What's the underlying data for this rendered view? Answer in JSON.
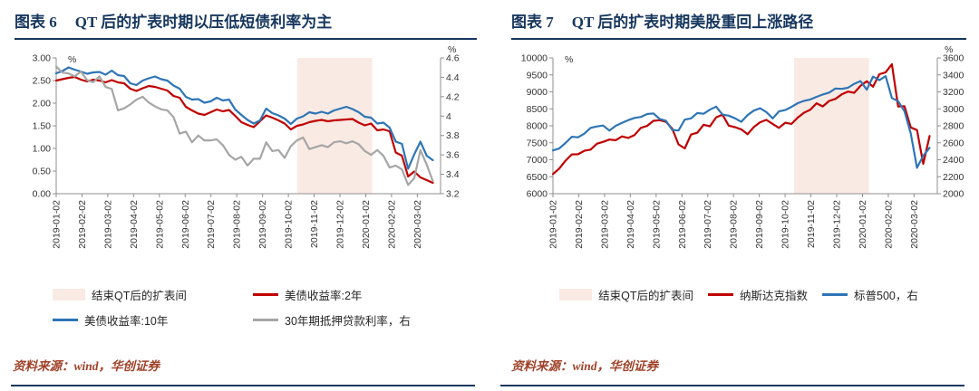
{
  "theme": {
    "navy": "#17375e",
    "red": "#c00000",
    "blue": "#2e75b6",
    "gray": "#a6a6a6",
    "shade_pink": "#f9eae4",
    "source_text": "#a0422a"
  },
  "panels": [
    {
      "figure_label": "图表 6",
      "title": "QT 后的扩表时期以压低短债利率为主",
      "source": "资料来源：wind，华创证券",
      "legend_rows": [
        [
          {
            "type": "area",
            "color": "#f9eae4",
            "label": "结束QT后的扩表间"
          },
          {
            "type": "line",
            "color": "#c00000",
            "label": "美债收益率:2年"
          }
        ],
        [
          {
            "type": "line",
            "color": "#2e75b6",
            "label": "美债收益率:10年"
          },
          {
            "type": "line",
            "color": "#a6a6a6",
            "label": "30年期抵押贷款利率，右"
          }
        ]
      ]
    },
    {
      "figure_label": "图表 7",
      "title": "QT 后的扩表时期美股重回上涨路径",
      "source": "资料来源：wind，华创证券",
      "legend_rows": [
        [
          {
            "type": "area",
            "color": "#f9eae4",
            "label": "结束QT后的扩表间"
          },
          {
            "type": "line",
            "color": "#c00000",
            "label": "纳斯达克指数"
          },
          {
            "type": "line",
            "color": "#2e75b6",
            "label": "标普500，右"
          }
        ]
      ]
    }
  ],
  "chart_data": [
    {
      "type": "line",
      "title": "QT 后的扩表时期以压低短债利率为主",
      "categories": [
        "2019-01-02",
        "2019-02-02",
        "2019-03-02",
        "2019-04-02",
        "2019-05-02",
        "2019-06-02",
        "2019-07-02",
        "2019-08-02",
        "2019-09-02",
        "2019-10-02",
        "2019-11-02",
        "2019-12-02",
        "2020-01-02",
        "2020-02-02",
        "2020-03-02"
      ],
      "x_range": [
        0,
        14.9
      ],
      "x_end": 14.6,
      "left_axis": {
        "min": 0,
        "max": 3,
        "step": 0.5,
        "decimals": 2,
        "unit": "%"
      },
      "right_axis": {
        "min": 3.2,
        "max": 4.6,
        "step": 0.2,
        "decimals": 1,
        "trim": true,
        "unit": "%"
      },
      "shade": {
        "label": "结束QT后的扩表间",
        "from": 9.35,
        "to": 12.25,
        "color": "#f9eae4"
      },
      "series": [
        {
          "name": "美债收益率:2年",
          "axis": "left",
          "color": "#c00000",
          "width": 2.2,
          "values": [
            2.5,
            2.53,
            2.56,
            2.58,
            2.52,
            2.48,
            2.52,
            2.5,
            2.46,
            2.51,
            2.46,
            2.44,
            2.32,
            2.27,
            2.33,
            2.38,
            2.36,
            2.32,
            2.28,
            2.16,
            2.12,
            1.92,
            1.84,
            1.77,
            1.74,
            1.8,
            1.86,
            1.82,
            1.85,
            1.72,
            1.58,
            1.52,
            1.47,
            1.6,
            1.73,
            1.68,
            1.62,
            1.55,
            1.42,
            1.5,
            1.53,
            1.58,
            1.61,
            1.63,
            1.6,
            1.62,
            1.63,
            1.64,
            1.65,
            1.57,
            1.51,
            1.55,
            1.4,
            1.42,
            1.38,
            0.91,
            0.84,
            0.38,
            0.49,
            0.36,
            0.3,
            0.24
          ]
        },
        {
          "name": "美债收益率:10年",
          "axis": "left",
          "color": "#2e75b6",
          "width": 2.2,
          "values": [
            2.66,
            2.71,
            2.79,
            2.74,
            2.7,
            2.65,
            2.68,
            2.69,
            2.63,
            2.72,
            2.62,
            2.6,
            2.44,
            2.4,
            2.5,
            2.55,
            2.59,
            2.53,
            2.5,
            2.39,
            2.32,
            2.14,
            2.08,
            2.09,
            2.01,
            2.04,
            2.12,
            2.06,
            2.08,
            1.86,
            1.74,
            1.63,
            1.55,
            1.62,
            1.88,
            1.78,
            1.73,
            1.66,
            1.54,
            1.66,
            1.71,
            1.8,
            1.77,
            1.81,
            1.77,
            1.84,
            1.88,
            1.92,
            1.87,
            1.8,
            1.7,
            1.68,
            1.55,
            1.57,
            1.46,
            1.15,
            1.1,
            0.55,
            0.87,
            1.15,
            0.84,
            0.74
          ]
        },
        {
          "name": "30年期抵押贷款利率，右",
          "axis": "right",
          "color": "#a6a6a6",
          "width": 2.2,
          "values": [
            4.51,
            4.45,
            4.44,
            4.41,
            4.46,
            4.37,
            4.35,
            4.41,
            4.3,
            4.28,
            4.06,
            4.08,
            4.12,
            4.17,
            4.2,
            4.14,
            4.1,
            4.07,
            4.06,
            3.99,
            3.82,
            3.84,
            3.73,
            3.8,
            3.75,
            3.75,
            3.76,
            3.7,
            3.6,
            3.55,
            3.58,
            3.49,
            3.56,
            3.56,
            3.73,
            3.64,
            3.65,
            3.57,
            3.69,
            3.75,
            3.78,
            3.66,
            3.68,
            3.7,
            3.68,
            3.73,
            3.74,
            3.72,
            3.74,
            3.71,
            3.64,
            3.6,
            3.65,
            3.59,
            3.47,
            3.49,
            3.45,
            3.29,
            3.36,
            3.65,
            3.5,
            3.33
          ]
        }
      ]
    },
    {
      "type": "line",
      "title": "QT 后的扩表时期美股重回上涨路径",
      "categories": [
        "2019-01-02",
        "2019-02-02",
        "2019-03-02",
        "2019-04-02",
        "2019-05-02",
        "2019-06-02",
        "2019-07-02",
        "2019-08-02",
        "2019-09-02",
        "2019-10-02",
        "2019-11-02",
        "2019-12-02",
        "2020-01-02",
        "2020-02-02",
        "2020-03-02"
      ],
      "x_range": [
        0,
        14.9
      ],
      "x_end": 14.6,
      "left_axis": {
        "min": 6000,
        "max": 10000,
        "step": 500,
        "decimals": 0,
        "unit": "%"
      },
      "right_axis": {
        "min": 2000,
        "max": 3600,
        "step": 200,
        "decimals": 0,
        "unit": "%"
      },
      "shade": {
        "label": "结束QT后的扩表间",
        "from": 9.35,
        "to": 12.25,
        "color": "#f9eae4"
      },
      "series": [
        {
          "name": "纳斯达克指数",
          "axis": "left",
          "color": "#c00000",
          "width": 2.2,
          "values": [
            6580,
            6740,
            6971,
            7157,
            7164,
            7264,
            7298,
            7472,
            7527,
            7595,
            7577,
            7689,
            7643,
            7729,
            7939,
            7998,
            8146,
            8164,
            8120,
            7917,
            7453,
            7333,
            7742,
            7797,
            8032,
            7984,
            8244,
            8330,
            8004,
            7959,
            7896,
            7751,
            7963,
            8103,
            8177,
            8057,
            7939,
            8090,
            8057,
            8243,
            8386,
            8475,
            8665,
            8570,
            8733,
            8792,
            8925,
            9007,
            8973,
            9179,
            9315,
            9151,
            9521,
            9577,
            9817,
            8567,
            8576,
            7951,
            7875,
            6880,
            7700
          ]
        },
        {
          "name": "标普500，右",
          "axis": "right",
          "color": "#2e75b6",
          "width": 2.2,
          "values": [
            2510,
            2532,
            2597,
            2671,
            2665,
            2707,
            2776,
            2793,
            2803,
            2743,
            2800,
            2834,
            2867,
            2893,
            2905,
            2939,
            2946,
            2881,
            2860,
            2752,
            2744,
            2873,
            2887,
            2950,
            2942,
            2990,
            3026,
            2932,
            2919,
            2889,
            2847,
            2926,
            2979,
            3007,
            2962,
            2887,
            2970,
            2986,
            3023,
            3067,
            3094,
            3110,
            3141,
            3169,
            3191,
            3240,
            3235,
            3248,
            3295,
            3327,
            3226,
            3380,
            3338,
            3386,
            3128,
            3090,
            2972,
            2711,
            2305,
            2447,
            2541
          ]
        }
      ]
    }
  ]
}
